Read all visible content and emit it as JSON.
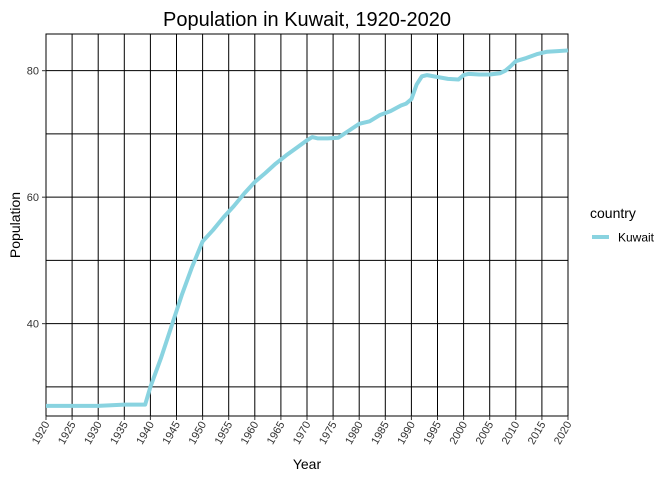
{
  "chart_data": {
    "type": "line",
    "title": "Population in Kuwait, 1920-2020",
    "xlabel": "Year",
    "ylabel": "Population",
    "xlim": [
      1920,
      2020
    ],
    "ylim": [
      25.4,
      85.8
    ],
    "x_ticks": [
      1920,
      1925,
      1930,
      1935,
      1940,
      1945,
      1950,
      1955,
      1960,
      1965,
      1970,
      1975,
      1980,
      1985,
      1990,
      1995,
      2000,
      2005,
      2010,
      2015,
      2020
    ],
    "y_ticks": [
      40,
      60,
      80
    ],
    "y_gridlines": [
      30,
      40,
      50,
      60,
      70,
      80
    ],
    "grid": true,
    "legend": {
      "title": "country",
      "position": "right"
    },
    "series": [
      {
        "name": "Kuwait",
        "color": "#89d3e0",
        "x": [
          1920,
          1925,
          1930,
          1935,
          1939,
          1940,
          1942,
          1944,
          1946,
          1948,
          1950,
          1952,
          1954,
          1956,
          1958,
          1960,
          1962,
          1964,
          1966,
          1968,
          1970,
          1971,
          1972,
          1974,
          1976,
          1978,
          1980,
          1982,
          1984,
          1986,
          1988,
          1989,
          1990,
          1991,
          1992,
          1993,
          1995,
          1997,
          1999,
          2000,
          2001,
          2003,
          2005,
          2007,
          2008,
          2009,
          2010,
          2012,
          2014,
          2016,
          2018,
          2020
        ],
        "y": [
          27.0,
          27.0,
          27.0,
          27.2,
          27.2,
          30.0,
          34.5,
          39.5,
          44.5,
          49.0,
          53.0,
          54.8,
          56.8,
          58.6,
          60.6,
          62.4,
          63.8,
          65.3,
          66.6,
          67.8,
          69.0,
          69.5,
          69.3,
          69.3,
          69.4,
          70.5,
          71.6,
          72.0,
          73.0,
          73.6,
          74.5,
          74.8,
          75.5,
          77.8,
          79.1,
          79.3,
          79.0,
          78.7,
          78.6,
          79.3,
          79.5,
          79.4,
          79.4,
          79.6,
          80.0,
          80.7,
          81.5,
          82.0,
          82.6,
          83.0,
          83.1,
          83.2
        ]
      }
    ]
  }
}
